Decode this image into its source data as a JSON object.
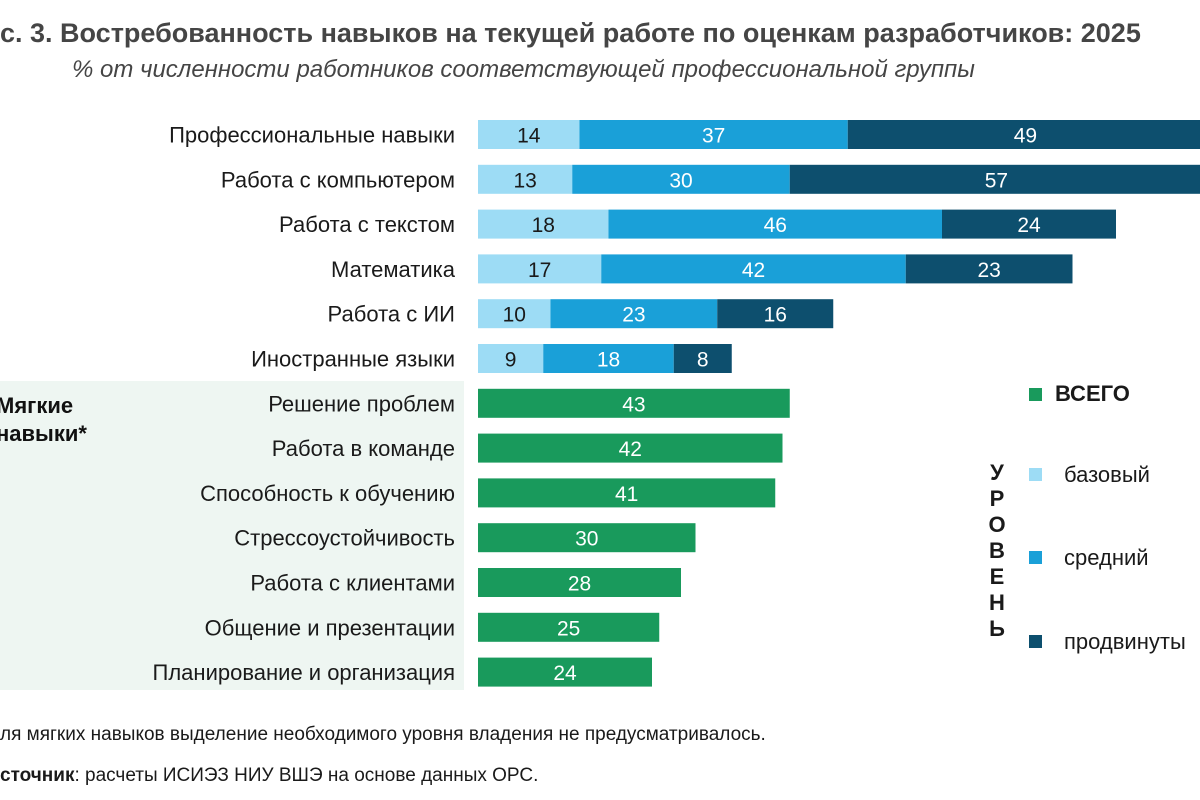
{
  "title": "с. 3. Востребованность навыков на текущей работе по оценкам разработчиков: 2025",
  "subtitle": "% от численности работников соответствующей профессиональной группы",
  "soft_group_label": "Мягкие навыки*",
  "colors": {
    "basic": "#9ddcf5",
    "medium": "#1aa0d8",
    "advanced": "#0d4f6e",
    "total": "#199a5c",
    "soft_bg": "#eef6f2"
  },
  "legend": {
    "total": "ВСЕГО",
    "level_title": "УРОВЕНЬ",
    "level_letters": [
      "У",
      "Р",
      "О",
      "В",
      "Е",
      "Н",
      "Ь"
    ],
    "basic": "базовый",
    "medium": "средний",
    "advanced": "продвинуты"
  },
  "footnote": "ля мягких навыков выделение необходимого уровня владения не предусматривалось.",
  "source": {
    "label": "сточник",
    "text": ": расчеты ИСИЭЗ НИУ ВШЭ на основе данных ОРС."
  },
  "chart_data": {
    "type": "bar",
    "orientation": "horizontal",
    "stacked": true,
    "categories": [
      "Профессиональные навыки",
      "Работа с компьютером",
      "Работа с текстом",
      "Математика",
      "Работа с ИИ",
      "Иностранные языки",
      "Решение проблем",
      "Работа в команде",
      "Способность к обучению",
      "Стрессоустойчивость",
      "Работа с клиентами",
      "Общение и презентации",
      "Планирование и организация"
    ],
    "series": [
      {
        "name": "базовый",
        "values": [
          14,
          13,
          18,
          17,
          10,
          9,
          null,
          null,
          null,
          null,
          null,
          null,
          null
        ]
      },
      {
        "name": "средний",
        "values": [
          37,
          30,
          46,
          42,
          23,
          18,
          null,
          null,
          null,
          null,
          null,
          null,
          null
        ]
      },
      {
        "name": "продвинуты",
        "values": [
          49,
          57,
          24,
          23,
          16,
          8,
          null,
          null,
          null,
          null,
          null,
          null,
          null
        ]
      },
      {
        "name": "ВСЕГО",
        "values": [
          null,
          null,
          null,
          null,
          null,
          null,
          43,
          42,
          41,
          30,
          28,
          25,
          24
        ]
      }
    ],
    "xlim": [
      0,
      100
    ],
    "grid": false,
    "legend_position": "right"
  }
}
